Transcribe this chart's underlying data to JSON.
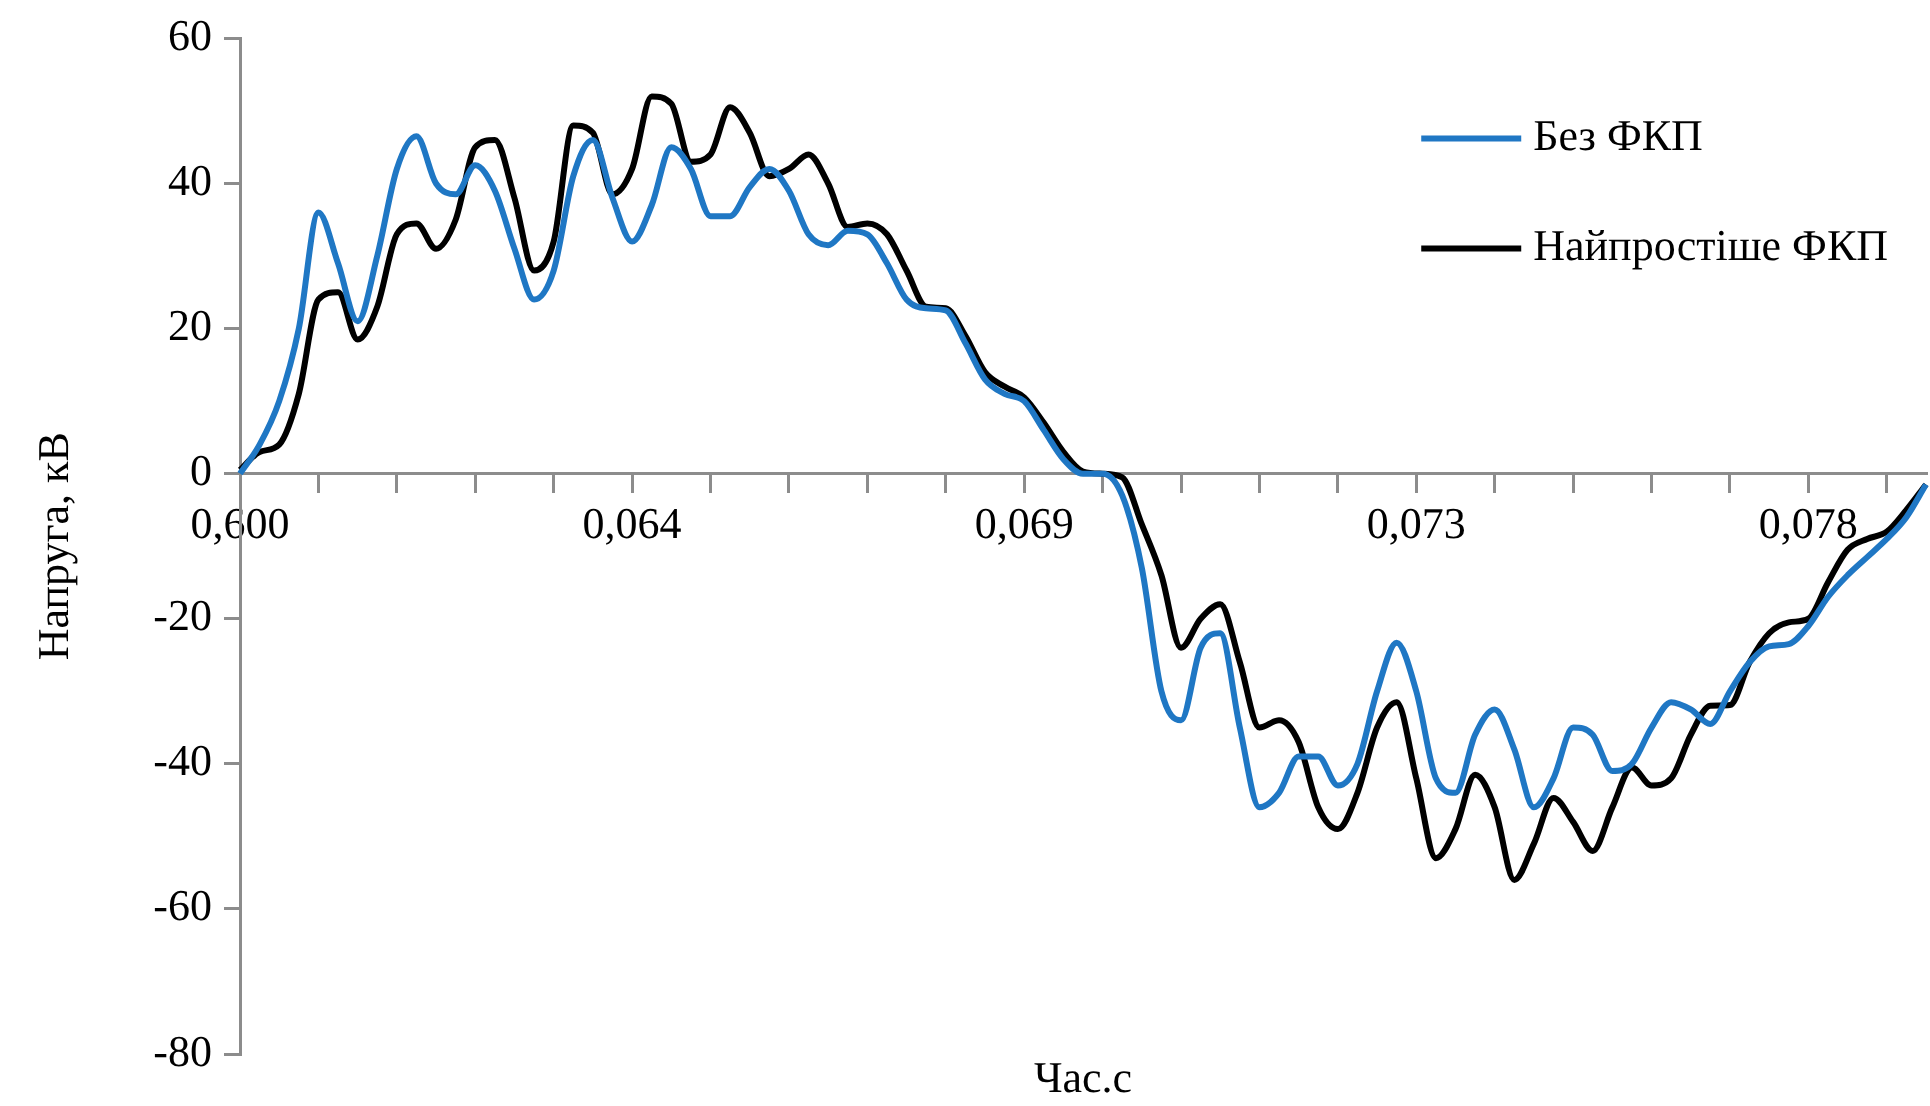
{
  "chart_data": {
    "type": "line",
    "xlabel": "Час.с",
    "ylabel": "Напруга, кВ",
    "categories": [
      "0,600",
      null,
      null,
      null,
      null,
      null,
      null,
      null,
      null,
      null,
      null,
      null,
      null,
      null,
      null,
      null,
      null,
      null,
      null,
      null,
      "0,064",
      null,
      null,
      null,
      null,
      null,
      null,
      null,
      null,
      null,
      null,
      null,
      null,
      null,
      null,
      null,
      null,
      null,
      null,
      null,
      "0,069",
      null,
      null,
      null,
      null,
      null,
      null,
      null,
      null,
      null,
      null,
      null,
      null,
      null,
      null,
      null,
      null,
      null,
      null,
      null,
      "0,073",
      null,
      null,
      null,
      null,
      null,
      null,
      null,
      null,
      null,
      null,
      null,
      null,
      null,
      null,
      null,
      null,
      null,
      null,
      null,
      "0,078",
      null,
      null,
      null,
      null,
      null,
      null
    ],
    "series": [
      {
        "name": "Без ФКП",
        "color": "#1f77c4",
        "values": [
          0,
          4,
          10,
          20,
          36,
          29,
          21,
          30,
          42,
          46.5,
          40,
          38.5,
          42.5,
          39,
          31,
          24,
          28,
          41,
          46,
          38,
          32,
          37,
          45,
          42,
          35.5,
          35.5,
          39.5,
          42,
          39,
          33,
          31.5,
          33.5,
          33,
          29,
          24,
          22.8,
          22.5,
          18,
          13,
          11,
          10,
          6,
          2,
          0,
          0,
          -3,
          -13,
          -30,
          -34,
          -24,
          -22,
          -35,
          -46,
          -44,
          -39,
          -39,
          -43,
          -40,
          -30,
          -23.3,
          -30,
          -42,
          -44,
          -36,
          -32.5,
          -38,
          -46,
          -42,
          -35,
          -36,
          -41,
          -40,
          -35,
          -31.5,
          -32.5,
          -34.5,
          -30,
          -26,
          -23.8,
          -23.5,
          -21,
          -17,
          -14,
          -11.5,
          -9,
          -6,
          -1.5
        ]
      },
      {
        "name": "Найпростіше ФКП",
        "color": "#000000",
        "values": [
          0.5,
          3,
          4,
          11,
          24,
          25,
          18.5,
          23,
          33,
          34.5,
          31,
          35,
          45,
          46,
          38,
          28,
          32,
          48,
          47,
          38.5,
          42,
          52,
          51,
          43,
          44,
          50.5,
          47,
          41,
          42,
          44,
          40,
          34,
          34.5,
          33,
          28,
          23,
          22.8,
          19,
          14,
          12,
          10.5,
          7,
          3,
          0.3,
          0,
          -0.5,
          -7,
          -14,
          -24,
          -20,
          -18,
          -26,
          -35,
          -34,
          -37,
          -46,
          -49,
          -44,
          -35,
          -31.5,
          -42,
          -53,
          -49,
          -41.5,
          -46,
          -56,
          -51,
          -44.7,
          -48,
          -52,
          -46,
          -40.5,
          -43,
          -42,
          -36,
          -32,
          -31.9,
          -26,
          -22,
          -20.5,
          -20,
          -15,
          -10.5,
          -9,
          -8,
          -5,
          -1.5
        ]
      }
    ],
    "ylim": [
      -80,
      60
    ],
    "yticks": [
      -80,
      -60,
      -40,
      -20,
      0,
      20,
      40,
      60
    ],
    "grid": false,
    "legend": "top right",
    "marker": "none",
    "line_style": "solid"
  }
}
